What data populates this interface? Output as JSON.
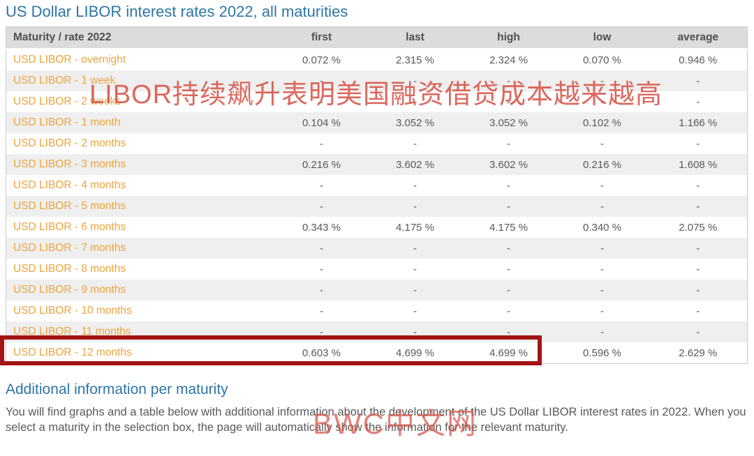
{
  "page": {
    "title": "US Dollar LIBOR interest rates 2022, all maturities",
    "section_title": "Additional information per maturity",
    "section_text": "You will find graphs and a table below with additional information about the development of the US Dollar LIBOR interest rates in 2022. When you select a maturity in the selection box, the page will automatically show the information for the relevant maturity."
  },
  "watermarks": {
    "overlay_text": "LIBOR持续飙升表明美国融资借贷成本越来越高",
    "brand_text": "BWC中文网",
    "color": "#d64e42"
  },
  "colors": {
    "title_blue": "#2e76a5",
    "label_orange": "#eda43e",
    "header_bg": "#dcdcdc",
    "stripe_gray": "#efefef",
    "value_gray": "#59595b",
    "highlight_border_red": "#a31414"
  },
  "table": {
    "headers": [
      "Maturity / rate 2022",
      "first",
      "last",
      "high",
      "low",
      "average"
    ],
    "rows": [
      {
        "label": "USD LIBOR - overnight",
        "first": "0.072 %",
        "last": "2.315 %",
        "high": "2.324 %",
        "low": "0.070 %",
        "average": "0.946 %",
        "highlighted": false
      },
      {
        "label": "USD LIBOR - 1 week",
        "first": "-",
        "last": "-",
        "high": "-",
        "low": "-",
        "average": "-",
        "highlighted": false
      },
      {
        "label": "USD LIBOR - 2 weeks",
        "first": "-",
        "last": "-",
        "high": "-",
        "low": "-",
        "average": "-",
        "highlighted": false
      },
      {
        "label": "USD LIBOR - 1 month",
        "first": "0.104 %",
        "last": "3.052 %",
        "high": "3.052 %",
        "low": "0.102 %",
        "average": "1.166 %",
        "highlighted": false
      },
      {
        "label": "USD LIBOR - 2 months",
        "first": "-",
        "last": "-",
        "high": "-",
        "low": "-",
        "average": "-",
        "highlighted": false
      },
      {
        "label": "USD LIBOR - 3 months",
        "first": "0.216 %",
        "last": "3.602 %",
        "high": "3.602 %",
        "low": "0.216 %",
        "average": "1.608 %",
        "highlighted": false
      },
      {
        "label": "USD LIBOR - 4 months",
        "first": "-",
        "last": "-",
        "high": "-",
        "low": "-",
        "average": "-",
        "highlighted": false
      },
      {
        "label": "USD LIBOR - 5 months",
        "first": "-",
        "last": "-",
        "high": "-",
        "low": "-",
        "average": "-",
        "highlighted": false
      },
      {
        "label": "USD LIBOR - 6 months",
        "first": "0.343 %",
        "last": "4.175 %",
        "high": "4.175 %",
        "low": "0.340 %",
        "average": "2.075 %",
        "highlighted": false
      },
      {
        "label": "USD LIBOR - 7 months",
        "first": "-",
        "last": "-",
        "high": "-",
        "low": "-",
        "average": "-",
        "highlighted": false
      },
      {
        "label": "USD LIBOR - 8 months",
        "first": "-",
        "last": "-",
        "high": "-",
        "low": "-",
        "average": "-",
        "highlighted": false
      },
      {
        "label": "USD LIBOR - 9 months",
        "first": "-",
        "last": "-",
        "high": "-",
        "low": "-",
        "average": "-",
        "highlighted": false
      },
      {
        "label": "USD LIBOR - 10 months",
        "first": "-",
        "last": "-",
        "high": "-",
        "low": "-",
        "average": "-",
        "highlighted": false
      },
      {
        "label": "USD LIBOR - 11 months",
        "first": "-",
        "last": "-",
        "high": "-",
        "low": "-",
        "average": "-",
        "highlighted": false
      },
      {
        "label": "USD LIBOR - 12 months",
        "first": "0.603 %",
        "last": "4.699 %",
        "high": "4.699 %",
        "low": "0.596 %",
        "average": "2.629 %",
        "highlighted": true
      }
    ]
  }
}
